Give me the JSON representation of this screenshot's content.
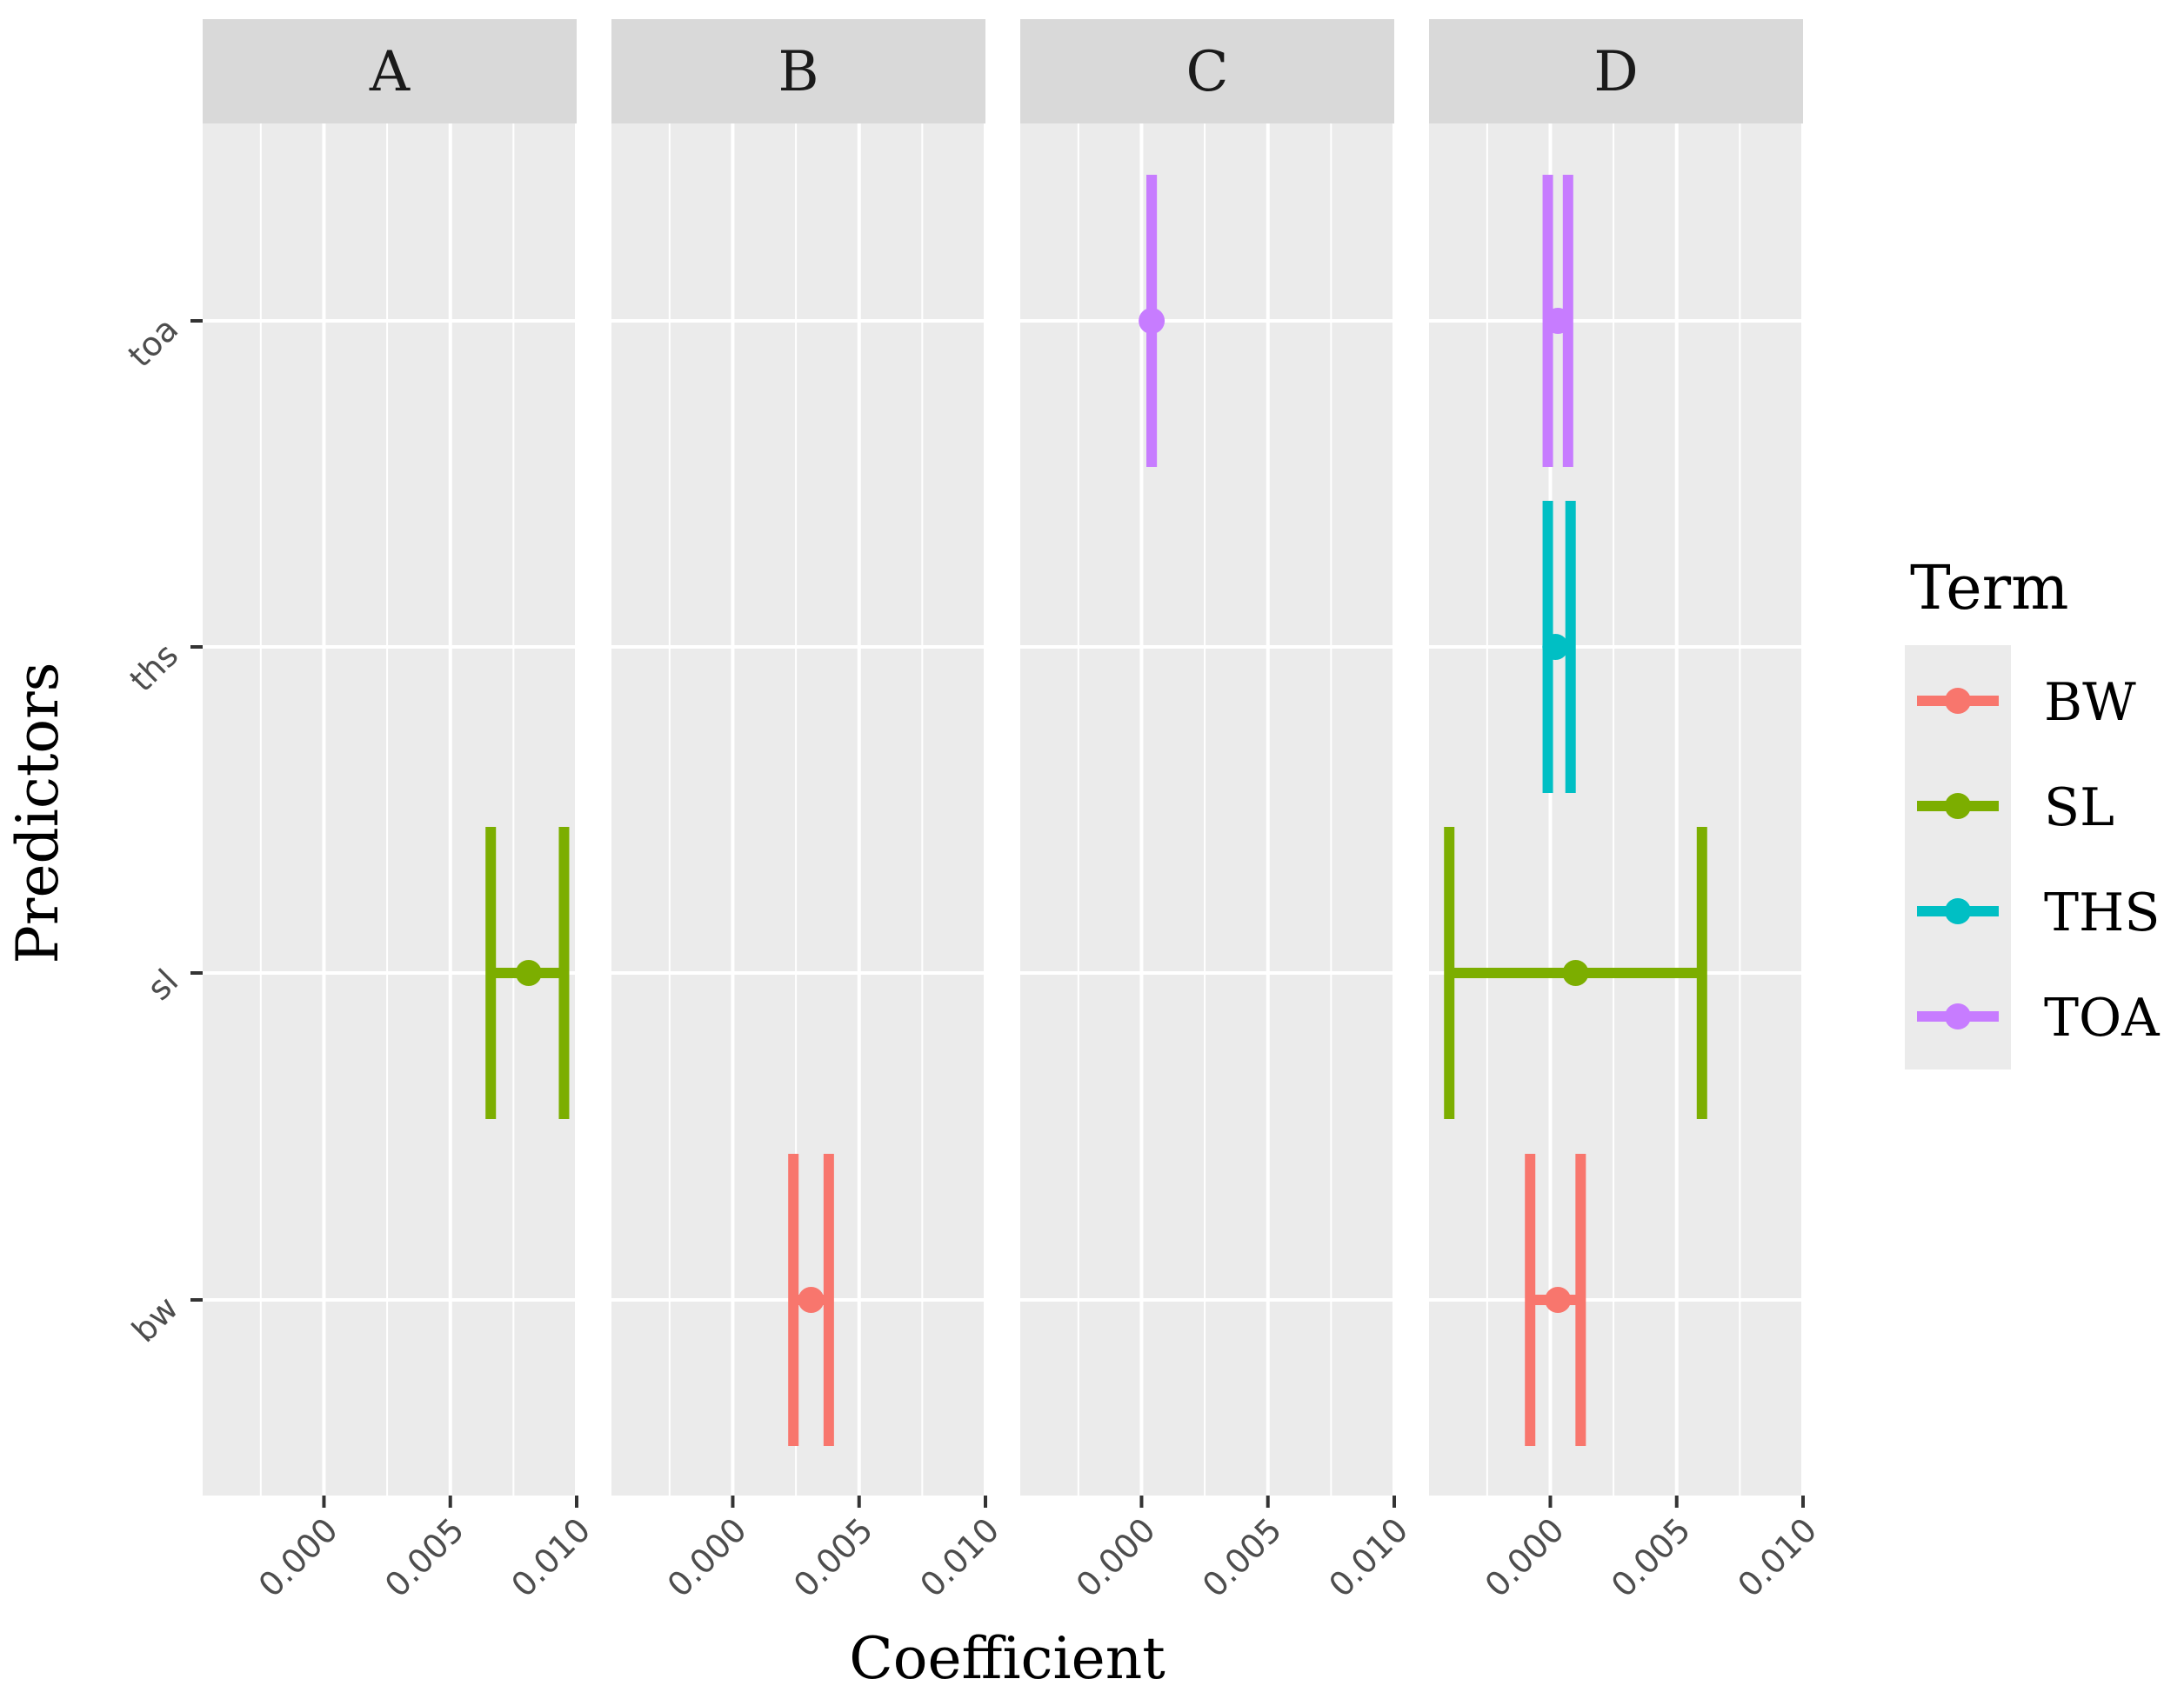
{
  "chart_data": {
    "type": "errorbar-facet",
    "title": "",
    "xlabel": "Coefficient",
    "ylabel": "Predictors",
    "xlim": [
      -0.0048,
      0.01
    ],
    "x_ticks": [
      0.0,
      0.005,
      0.01
    ],
    "x_tick_labels": [
      "0.000",
      "0.005",
      "0.010"
    ],
    "y_categories": [
      "bw",
      "sl",
      "ths",
      "toa"
    ],
    "legend": {
      "title": "Term",
      "position": "right",
      "entries": [
        {
          "key": "BW",
          "label": "BW",
          "color": "#F8766D"
        },
        {
          "key": "SL",
          "label": "SL",
          "color": "#7CAE00"
        },
        {
          "key": "THS",
          "label": "THS",
          "color": "#00BFC4"
        },
        {
          "key": "TOA",
          "label": "TOA",
          "color": "#C77CFF"
        }
      ]
    },
    "panels": [
      {
        "label": "A",
        "points": [
          {
            "term": "SL",
            "y": "sl",
            "estimate": 0.0081,
            "low": 0.0066,
            "high": 0.0095
          }
        ]
      },
      {
        "label": "B",
        "points": [
          {
            "term": "BW",
            "y": "bw",
            "estimate": 0.0031,
            "low": 0.0024,
            "high": 0.0038
          }
        ]
      },
      {
        "label": "C",
        "points": [
          {
            "term": "TOA",
            "y": "toa",
            "estimate": 0.0004,
            "low": 0.0004,
            "high": 0.0004
          }
        ]
      },
      {
        "label": "D",
        "points": [
          {
            "term": "TOA",
            "y": "toa",
            "estimate": 0.0003,
            "low": -0.0001,
            "high": 0.0007
          },
          {
            "term": "THS",
            "y": "ths",
            "estimate": 0.0002,
            "low": -0.0001,
            "high": 0.0008
          },
          {
            "term": "SL",
            "y": "sl",
            "estimate": 0.001,
            "low": -0.004,
            "high": 0.006
          },
          {
            "term": "BW",
            "y": "bw",
            "estimate": 0.0003,
            "low": -0.0008,
            "high": 0.0012
          }
        ]
      }
    ]
  }
}
